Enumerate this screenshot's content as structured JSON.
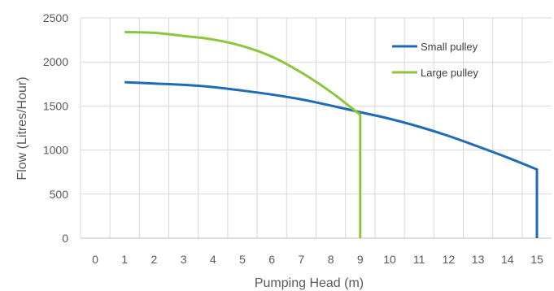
{
  "chart_data": {
    "type": "line",
    "title": "",
    "xlabel": "Pumping Head (m)",
    "ylabel": "Flow (Litres/Hour)",
    "xlim": [
      0,
      15
    ],
    "ylim": [
      0,
      2500
    ],
    "x_ticks": [
      "0",
      "1",
      "2",
      "3",
      "4",
      "5",
      "6",
      "7",
      "8",
      "9",
      "10",
      "11",
      "12",
      "13",
      "14",
      "15"
    ],
    "y_ticks": [
      "0",
      "500",
      "1000",
      "1500",
      "2000",
      "2500"
    ],
    "grid": "vertical and horizontal",
    "legend_position": "top-right",
    "series": [
      {
        "name": "Small pulley",
        "color": "#1f6bb5",
        "points": [
          [
            1,
            1770
          ],
          [
            2,
            1755
          ],
          [
            3,
            1740
          ],
          [
            4,
            1715
          ],
          [
            5,
            1675
          ],
          [
            6,
            1630
          ],
          [
            7,
            1575
          ],
          [
            8,
            1505
          ],
          [
            9,
            1430
          ],
          [
            10,
            1355
          ],
          [
            11,
            1265
          ],
          [
            12,
            1160
          ],
          [
            13,
            1040
          ],
          [
            14,
            915
          ],
          [
            15,
            780
          ],
          [
            15,
            0
          ]
        ]
      },
      {
        "name": "Large pulley",
        "color": "#8cc63f",
        "points": [
          [
            1,
            2340
          ],
          [
            2,
            2330
          ],
          [
            3,
            2295
          ],
          [
            4,
            2255
          ],
          [
            5,
            2180
          ],
          [
            6,
            2060
          ],
          [
            7,
            1880
          ],
          [
            8,
            1660
          ],
          [
            9,
            1400
          ],
          [
            9,
            0
          ]
        ]
      }
    ]
  }
}
